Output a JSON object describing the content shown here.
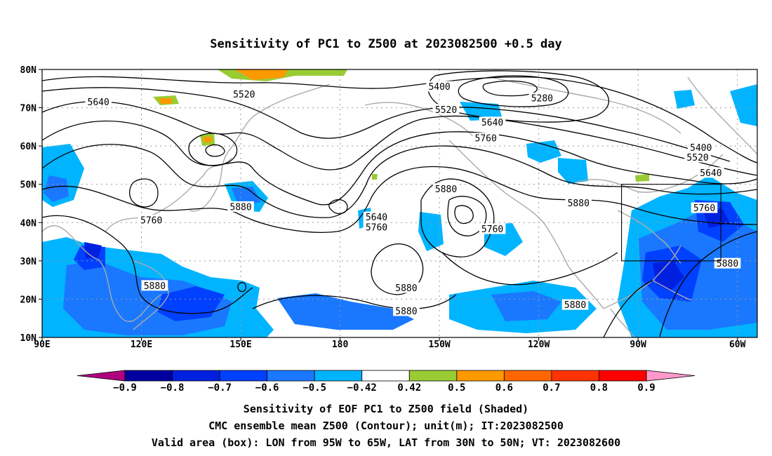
{
  "title": "Sensitivity of PC1 to Z500 at 2023082500 +0.5 day",
  "axes": {
    "lat_labels": [
      "80N",
      "70N",
      "60N",
      "50N",
      "40N",
      "30N",
      "20N",
      "10N"
    ],
    "lon_labels": [
      "90E",
      "120E",
      "150E",
      "180",
      "150W",
      "120W",
      "90W",
      "60W"
    ]
  },
  "contour_labels": [
    {
      "text": "5640",
      "lon": 107,
      "lat": 71.5
    },
    {
      "text": "5520",
      "lon": 151,
      "lat": 73.5
    },
    {
      "text": "5400",
      "lon": 210,
      "lat": 75.5
    },
    {
      "text": "5280",
      "lon": 241,
      "lat": 72.5
    },
    {
      "text": "5520",
      "lon": 212,
      "lat": 69.5
    },
    {
      "text": "5640",
      "lon": 226,
      "lat": 66.2
    },
    {
      "text": "5760",
      "lon": 224,
      "lat": 62.0
    },
    {
      "text": "5400",
      "lon": 289,
      "lat": 59.6
    },
    {
      "text": "5520",
      "lon": 288,
      "lat": 57.0
    },
    {
      "text": "5640",
      "lon": 292,
      "lat": 53.0
    },
    {
      "text": "5880",
      "lon": 150,
      "lat": 44.1
    },
    {
      "text": "5880",
      "lon": 212,
      "lat": 48.8
    },
    {
      "text": "5880",
      "lon": 252,
      "lat": 45.1
    },
    {
      "text": "5640",
      "lon": 191,
      "lat": 41.4
    },
    {
      "text": "5760",
      "lon": 191,
      "lat": 38.8
    },
    {
      "text": "5760",
      "lon": 123,
      "lat": 40.6
    },
    {
      "text": "5760",
      "lon": 226,
      "lat": 38.3
    },
    {
      "text": "5760",
      "lon": 290,
      "lat": 43.8
    },
    {
      "text": "5880",
      "lon": 297,
      "lat": 29.3
    },
    {
      "text": "5880",
      "lon": 124,
      "lat": 23.5
    },
    {
      "text": "5880",
      "lon": 200,
      "lat": 22.9
    },
    {
      "text": "5880",
      "lon": 200,
      "lat": 16.9
    },
    {
      "text": "5880",
      "lon": 251,
      "lat": 18.5
    }
  ],
  "valid_area": {
    "lon_from": "95W",
    "lon_to": "65W",
    "lat_from": "30N",
    "lat_to": "50N"
  },
  "colorbar": {
    "labels": [
      "-0.9",
      "-0.8",
      "-0.7",
      "-0.6",
      "-0.5",
      "-0.42",
      "0.42",
      "0.5",
      "0.6",
      "0.7",
      "0.8",
      "0.9"
    ],
    "colors": [
      "#0000a0",
      "#0020e0",
      "#0040ff",
      "#1a78ff",
      "#00b4ff",
      "#ffffff",
      "#99cc33",
      "#ff9900",
      "#ff6600",
      "#ff3300",
      "#ff0000"
    ],
    "low_end_color": "#b00080",
    "high_end_color": "#ff99cc"
  },
  "captions": {
    "line1": "Sensitivity of EOF PC1 to Z500 field (Shaded)",
    "line2": "CMC ensemble mean Z500 (Contour); unit(m); IT:2023082500",
    "line3": "Valid area (box): LON from 95W to 65W, LAT from 30N to 50N; VT: 2023082600"
  }
}
